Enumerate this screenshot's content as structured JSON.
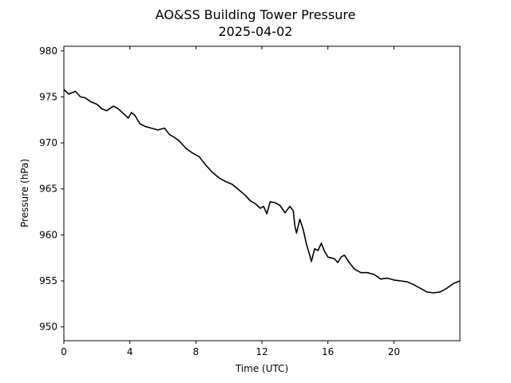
{
  "chart_data": {
    "type": "line",
    "title": "AO&SS Building Tower Pressure",
    "subtitle": "2025-04-02",
    "xlabel": "Time (UTC)",
    "ylabel": "Pressure (hPa)",
    "xlim": [
      0,
      24
    ],
    "ylim": [
      948.5,
      980.5
    ],
    "xticks": [
      0,
      4,
      8,
      12,
      16,
      20
    ],
    "yticks": [
      950,
      955,
      960,
      965,
      970,
      975,
      980
    ],
    "grid": false,
    "legend": "none",
    "series": [
      {
        "color": "#000000",
        "x": [
          0,
          0.3,
          0.7,
          1.0,
          1.3,
          1.6,
          2.0,
          2.3,
          2.6,
          3.0,
          3.3,
          3.6,
          3.9,
          4.1,
          4.3,
          4.6,
          4.9,
          5.3,
          5.7,
          6.1,
          6.4,
          6.7,
          7.0,
          7.4,
          7.8,
          8.2,
          8.6,
          9.0,
          9.4,
          9.8,
          10.2,
          10.6,
          11.0,
          11.3,
          11.6,
          11.9,
          12.1,
          12.3,
          12.5,
          12.8,
          13.1,
          13.4,
          13.7,
          13.9,
          14.0,
          14.1,
          14.3,
          14.5,
          14.7,
          14.9,
          15.0,
          15.2,
          15.4,
          15.6,
          15.8,
          16.0,
          16.2,
          16.4,
          16.6,
          16.8,
          17.0,
          17.3,
          17.6,
          18.0,
          18.4,
          18.8,
          19.2,
          19.6,
          20.0,
          20.4,
          20.8,
          21.2,
          21.6,
          22.0,
          22.4,
          22.8,
          23.2,
          23.6,
          24.0
        ],
        "y": [
          975.8,
          975.3,
          975.6,
          975.0,
          974.9,
          974.5,
          974.2,
          973.7,
          973.5,
          974.0,
          973.7,
          973.2,
          972.7,
          973.3,
          973.0,
          972.1,
          971.8,
          971.6,
          971.4,
          971.6,
          970.9,
          970.6,
          970.2,
          969.4,
          968.9,
          968.5,
          967.6,
          966.8,
          966.2,
          965.8,
          965.5,
          964.9,
          964.3,
          963.7,
          963.4,
          962.9,
          963.1,
          962.3,
          963.6,
          963.5,
          963.2,
          962.4,
          963.1,
          962.6,
          961.0,
          960.2,
          961.7,
          960.6,
          959.0,
          957.8,
          957.1,
          958.5,
          958.3,
          959.1,
          958.2,
          957.6,
          957.5,
          957.4,
          957.0,
          957.6,
          957.8,
          957.0,
          956.3,
          955.9,
          955.9,
          955.7,
          955.2,
          955.3,
          955.1,
          955.0,
          954.9,
          954.6,
          954.2,
          953.8,
          953.7,
          953.8,
          954.2,
          954.7,
          955.0
        ]
      }
    ]
  }
}
